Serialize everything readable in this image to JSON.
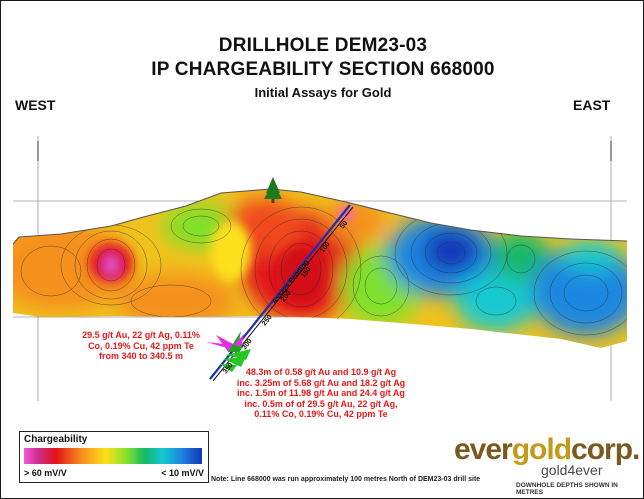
{
  "header": {
    "title": "DRILLHOLE DEM23-03",
    "subtitle": "IP CHARGEABILITY SECTION 668000",
    "caption": "Initial Assays for Gold"
  },
  "directions": {
    "west": "WEST",
    "east": "EAST"
  },
  "drillhole": {
    "label": "Assays Pending",
    "depth_marks": [
      "50",
      "100",
      "150",
      "200",
      "250",
      "300",
      "350"
    ]
  },
  "annotations": {
    "left": [
      "29.5 g/t Au, 22 g/t Ag, 0.11%",
      "Co, 0.19% Cu, 42 ppm Te",
      "from 340 to 340.5 m"
    ],
    "right": [
      "48.3m of 0.58 g/t Au and 10.9 g/t Ag",
      "inc. 3.25m of 5.68 g/t Au and 18.2 g/t Ag",
      "inc. 1.5m of 11.98 g/t Au and 24.4 g/t Ag",
      "inc. 0.5m of of 29.5 g/t Au, 22 g/t Ag,",
      "0.11% Co, 0.19% Cu, 42 ppm Te"
    ]
  },
  "legend": {
    "title": "Chargeability",
    "high_label": "> 60 mV/V",
    "low_label": "< 10 mV/V"
  },
  "footer": {
    "note": "Note: Line 668000 was run approximately 100 metres North of DEM23-03 drill site",
    "depth_note": "DOWNHOLE DEPTHS SHOWN IN METRES"
  },
  "logo": {
    "part1": "ever",
    "part2": "gold",
    "part3": "corp.",
    "tagline": "gold4ever"
  },
  "colors": {
    "high": "#f05ad8",
    "mid_high": "#e3121a",
    "mid": "#fde11a",
    "mid_low": "#13b86a",
    "low": "#1536b8",
    "annotation": "#e81818",
    "logo_brown": "#7a5a1e",
    "logo_gold": "#c49a1b"
  }
}
